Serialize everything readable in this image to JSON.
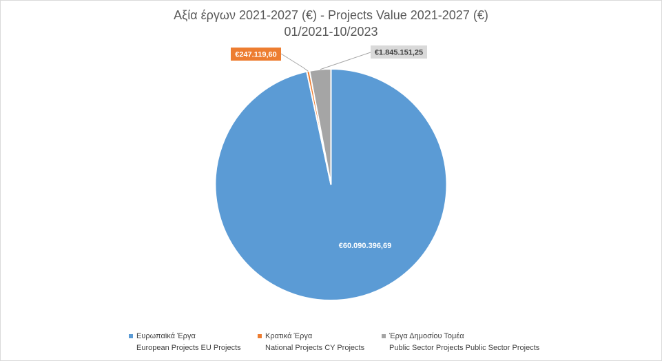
{
  "chart_data": {
    "type": "pie",
    "title": "Αξία έργων 2021-2027 (€) - Projects Value 2021-2027 (€)",
    "subtitle": "01/2021-10/2023",
    "categories": [
      "Ευρωπαϊκά Έργα European Projects EU Projects",
      "Κρατικά Έργα National Projects CY Projects",
      "Έργα Δημοσίου Τομέα Public Sector Projects Public Sector Projects"
    ],
    "values": [
      60090396.69,
      247119.6,
      1845151.25
    ],
    "data_labels": [
      "€60.090.396,69",
      "€247.119,60",
      "€1.845.151,25"
    ],
    "colors": [
      "#5b9bd5",
      "#ed7d31",
      "#a5a5a5"
    ],
    "legend_position": "bottom",
    "legend": [
      {
        "line1": "Ευρωπαϊκά Έργα",
        "line2": "European Projects EU Projects"
      },
      {
        "line1": "Κρατικά Έργα",
        "line2": "National Projects CY Projects"
      },
      {
        "line1": "Έργα Δημοσίου Τομέα",
        "line2": "Public Sector Projects Public Sector Projects"
      }
    ]
  }
}
